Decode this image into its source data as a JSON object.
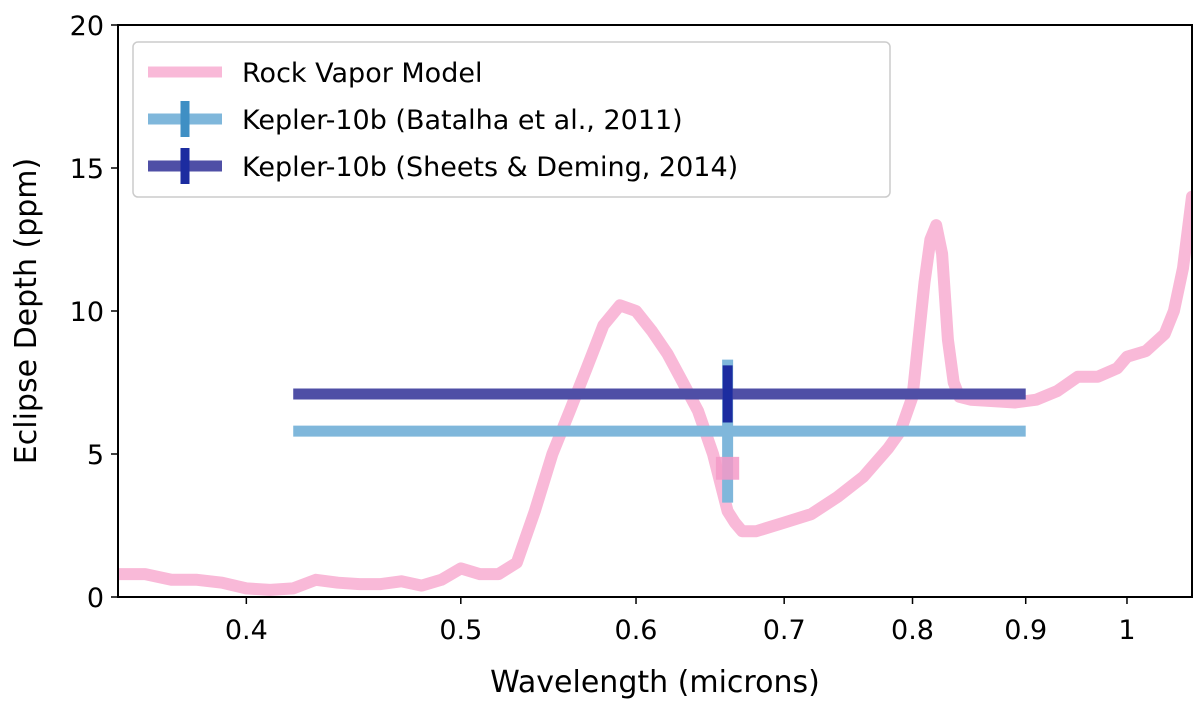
{
  "chart_data": {
    "type": "line",
    "xlabel": "Wavelength (microns)",
    "ylabel": "Eclipse Depth (ppm)",
    "xscale": "log",
    "xlim": [
      0.35,
      1.07
    ],
    "ylim": [
      0,
      20
    ],
    "xticks": [
      {
        "value": 0.4,
        "label": "0.4"
      },
      {
        "value": 0.5,
        "label": "0.5"
      },
      {
        "value": 0.6,
        "label": "0.6"
      },
      {
        "value": 0.7,
        "label": "0.7"
      },
      {
        "value": 0.8,
        "label": "0.8"
      },
      {
        "value": 0.9,
        "label": "0.9"
      },
      {
        "value": 1.0,
        "label": "1"
      }
    ],
    "yticks": [
      {
        "value": 0,
        "label": "0"
      },
      {
        "value": 5,
        "label": "5"
      },
      {
        "value": 10,
        "label": "10"
      },
      {
        "value": 15,
        "label": "15"
      },
      {
        "value": 20,
        "label": "20"
      }
    ],
    "legend_position": "top-left",
    "series": [
      {
        "name": "Rock Vapor Model",
        "kind": "line",
        "color": "#f9b9d8",
        "x": [
          0.35,
          0.36,
          0.37,
          0.38,
          0.39,
          0.4,
          0.41,
          0.42,
          0.43,
          0.44,
          0.45,
          0.46,
          0.47,
          0.48,
          0.49,
          0.5,
          0.51,
          0.52,
          0.53,
          0.54,
          0.55,
          0.56,
          0.57,
          0.58,
          0.59,
          0.6,
          0.61,
          0.62,
          0.63,
          0.64,
          0.65,
          0.655,
          0.66,
          0.665,
          0.67,
          0.68,
          0.7,
          0.72,
          0.74,
          0.76,
          0.78,
          0.79,
          0.8,
          0.81,
          0.815,
          0.82,
          0.825,
          0.83,
          0.835,
          0.84,
          0.85,
          0.87,
          0.89,
          0.91,
          0.93,
          0.95,
          0.97,
          0.99,
          1.0,
          1.02,
          1.04,
          1.05,
          1.06,
          1.07
        ],
        "y": [
          0.8,
          0.8,
          0.6,
          0.6,
          0.5,
          0.3,
          0.25,
          0.3,
          0.6,
          0.5,
          0.45,
          0.45,
          0.55,
          0.4,
          0.6,
          1.0,
          0.8,
          0.8,
          1.2,
          3.0,
          5.0,
          6.5,
          8.0,
          9.5,
          10.2,
          10.0,
          9.3,
          8.5,
          7.5,
          6.5,
          5.0,
          4.0,
          3.0,
          2.6,
          2.3,
          2.3,
          2.6,
          2.9,
          3.5,
          4.2,
          5.2,
          5.8,
          7.0,
          11.0,
          12.5,
          13.0,
          12.0,
          9.0,
          7.5,
          7.0,
          6.9,
          6.85,
          6.8,
          6.9,
          7.2,
          7.7,
          7.7,
          8.0,
          8.4,
          8.6,
          9.2,
          10.0,
          11.5,
          14.0
        ],
        "markers": [
          {
            "x": 0.66,
            "y": 4.5,
            "xerr": 0.008,
            "yerr": 0.4
          }
        ]
      },
      {
        "name": "Kepler-10b (Batalha et al., 2011)",
        "kind": "errorbar",
        "color": "#7fb7db",
        "x": 0.66,
        "y": 5.8,
        "xmin": 0.42,
        "xmax": 0.9,
        "ymin": 3.3,
        "ymax": 8.3
      },
      {
        "name": "Kepler-10b (Sheets & Deming, 2014)",
        "kind": "errorbar",
        "color": "#4f4fa6",
        "cross_color": "#1c2ca0",
        "x": 0.66,
        "y": 7.1,
        "xmin": 0.42,
        "xmax": 0.9,
        "ymin": 6.1,
        "ymax": 8.1
      }
    ]
  }
}
